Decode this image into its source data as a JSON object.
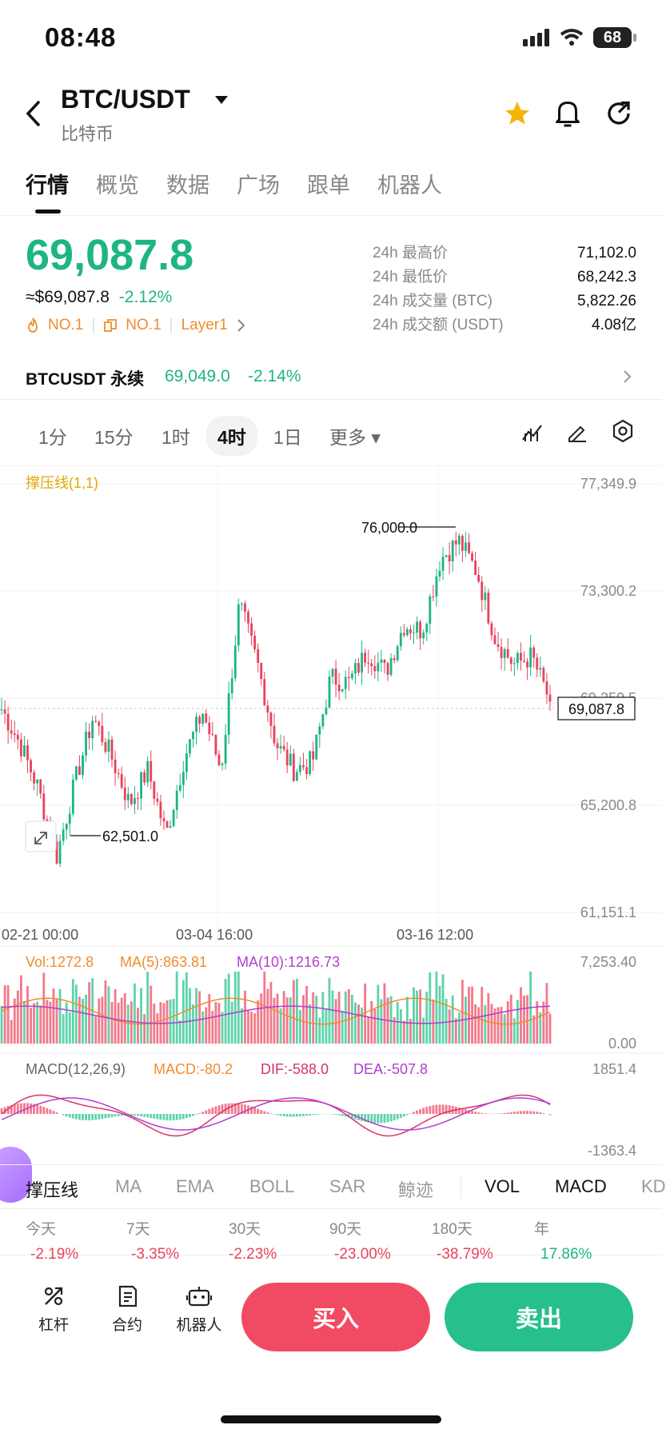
{
  "status_bar": {
    "time": "08:48",
    "battery": "68"
  },
  "header": {
    "pair": "BTC/USDT",
    "subtitle": "比特币"
  },
  "tabs": [
    "行情",
    "概览",
    "数据",
    "广场",
    "跟单",
    "机器人"
  ],
  "price": {
    "last": "69,087.8",
    "usd": "≈$69,087.8",
    "change": "-2.12%",
    "badge1": "NO.1",
    "badge2": "NO.1",
    "badge3": "Layer1"
  },
  "stats": [
    {
      "k": "24h 最高价",
      "v": "71,102.0"
    },
    {
      "k": "24h 最低价",
      "v": "68,242.3"
    },
    {
      "k": "24h 成交量 (BTC)",
      "v": "5,822.26"
    },
    {
      "k": "24h 成交额 (USDT)",
      "v": "4.08亿"
    }
  ],
  "perp": {
    "name": "BTCUSDT 永续",
    "price": "69,049.0",
    "change": "-2.14%"
  },
  "intervals": [
    "1分",
    "15分",
    "1时",
    "4时",
    "1日",
    "更多"
  ],
  "selected_interval": "4时",
  "chart": {
    "indicator_label": "撑压线(1,1)",
    "y_ticks": [
      "77,349.9",
      "73,300.2",
      "69,250.5",
      "65,200.8",
      "61,151.1"
    ],
    "x_ticks": [
      "02-21 00:00",
      "03-04 16:00",
      "03-16 12:00"
    ],
    "high_label": "76,000.0",
    "low_label": "62,501.0",
    "last_label": "69,087.8",
    "vol": {
      "vol": "Vol:1272.8",
      "ma5": "MA(5):863.81",
      "ma10": "MA(10):1216.73",
      "max": "7,253.40",
      "min": "0.00"
    },
    "macd": {
      "name": "MACD(12,26,9)",
      "macd": "MACD:-80.2",
      "dif": "DIF:-588.0",
      "dea": "DEA:-507.8",
      "max": "1851.4",
      "min": "-1363.4"
    }
  },
  "chart_data": {
    "type": "candlestick",
    "x_ticks": [
      "02-21 00:00",
      "03-04 16:00",
      "03-16 12:00"
    ],
    "ylim": [
      61151.1,
      77349.9
    ],
    "approx_close_path": [
      68800,
      67500,
      65800,
      63200,
      66000,
      68500,
      67000,
      65200,
      66500,
      64000,
      67000,
      68700,
      66500,
      72800,
      70500,
      67500,
      66500,
      66800,
      70000,
      69800,
      71000,
      70200,
      72000,
      71800,
      74500,
      75200,
      74000,
      71500,
      70500,
      70800,
      69087.8
    ],
    "high": 76000.0,
    "low": 62501.0,
    "last": 69087.8,
    "colors": {
      "up": "#1db584",
      "down": "#e9435c"
    }
  },
  "indicator_tabs": [
    "撑压线",
    "MA",
    "EMA",
    "BOLL",
    "SAR",
    "鲸迹",
    "VOL",
    "MACD",
    "KD"
  ],
  "performance": [
    {
      "k": "今天",
      "v": "-2.19%"
    },
    {
      "k": "7天",
      "v": "-3.35%"
    },
    {
      "k": "30天",
      "v": "-2.23%"
    },
    {
      "k": "90天",
      "v": "-23.00%"
    },
    {
      "k": "180天",
      "v": "-38.79%"
    },
    {
      "k": "年",
      "v": "17.86%"
    }
  ],
  "bottom": {
    "leverage": "杠杆",
    "contract": "合约",
    "bot": "机器人",
    "buy": "买入",
    "sell": "卖出"
  }
}
